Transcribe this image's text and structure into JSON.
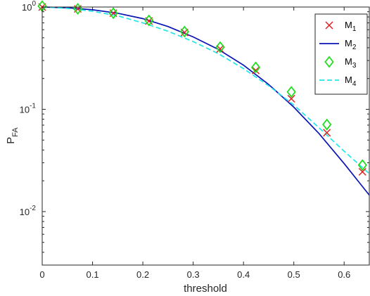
{
  "chart_data": {
    "type": "line",
    "xlabel": "threshold",
    "ylabel": {
      "base": "P",
      "sub": "FA"
    },
    "xlim": [
      0,
      0.65
    ],
    "ylim": [
      0.003,
      1
    ],
    "yscale": "log",
    "grid": false,
    "legend_position": "top-right",
    "x_ticks": [
      {
        "value": 0,
        "label": "0"
      },
      {
        "value": 0.1,
        "label": "0.1"
      },
      {
        "value": 0.2,
        "label": "0.2"
      },
      {
        "value": 0.3,
        "label": "0.3"
      },
      {
        "value": 0.4,
        "label": "0.4"
      },
      {
        "value": 0.5,
        "label": "0.5"
      },
      {
        "value": 0.6,
        "label": "0.6"
      }
    ],
    "y_ticks": [
      {
        "value": 1,
        "base": "10",
        "exp": "0"
      },
      {
        "value": 0.1,
        "base": "10",
        "exp": "-1"
      },
      {
        "value": 0.01,
        "base": "10",
        "exp": "-2"
      }
    ],
    "series": [
      {
        "name": "M",
        "sub": "1",
        "style": "x-marker",
        "color": "#e41a1c",
        "x": [
          0,
          0.0707,
          0.1414,
          0.2121,
          0.2828,
          0.3536,
          0.4243,
          0.495,
          0.5657,
          0.6364
        ],
        "y": [
          1.0,
          0.96,
          0.87,
          0.73,
          0.565,
          0.39,
          0.24,
          0.127,
          0.059,
          0.0245
        ]
      },
      {
        "name": "M",
        "sub": "2",
        "style": "solid-line",
        "color": "#0a14b4",
        "x": [
          0,
          0.05,
          0.1,
          0.15,
          0.2,
          0.25,
          0.3,
          0.35,
          0.4,
          0.45,
          0.5,
          0.55,
          0.6,
          0.65
        ],
        "y": [
          1.0,
          0.985,
          0.94,
          0.87,
          0.77,
          0.645,
          0.51,
          0.385,
          0.27,
          0.175,
          0.105,
          0.058,
          0.0295,
          0.0145
        ]
      },
      {
        "name": "M",
        "sub": "3",
        "style": "diamond-marker",
        "color": "#22dd22",
        "x": [
          0,
          0.0707,
          0.1414,
          0.2121,
          0.2828,
          0.3536,
          0.4243,
          0.495,
          0.5657,
          0.6364
        ],
        "y": [
          1.02,
          0.96,
          0.87,
          0.74,
          0.575,
          0.405,
          0.257,
          0.148,
          0.071,
          0.0285
        ]
      },
      {
        "name": "M",
        "sub": "4",
        "style": "dashed-line",
        "color": "#22e5e5",
        "x": [
          0,
          0.05,
          0.1,
          0.15,
          0.2,
          0.25,
          0.3,
          0.35,
          0.4,
          0.45,
          0.5,
          0.55,
          0.6,
          0.65
        ],
        "y": [
          1.0,
          0.97,
          0.91,
          0.82,
          0.7,
          0.58,
          0.46,
          0.35,
          0.25,
          0.17,
          0.11,
          0.066,
          0.039,
          0.0235
        ]
      }
    ]
  }
}
